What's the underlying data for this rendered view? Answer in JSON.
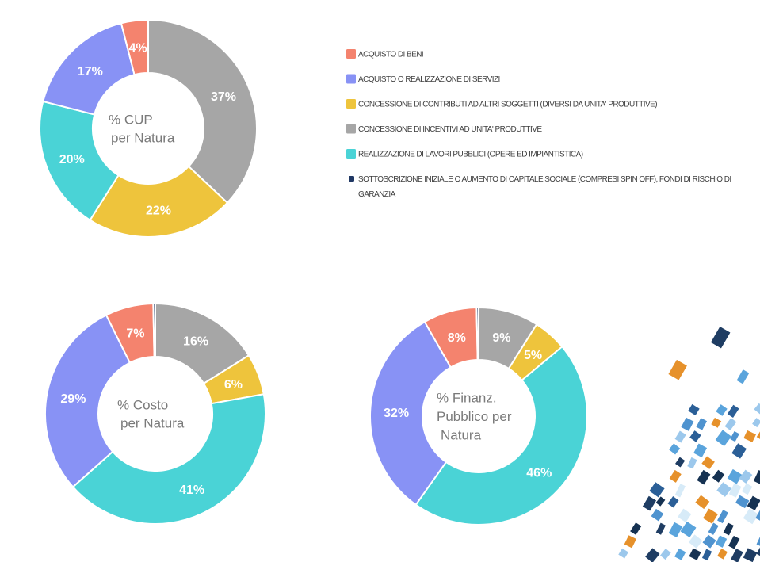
{
  "colors": {
    "acquisto_beni": "#f4836e",
    "servizi": "#8892f5",
    "contributi": "#eec43c",
    "incentivi": "#a6a6a6",
    "lavori": "#4ad3d6",
    "sottoscrizione": "#203864"
  },
  "legend": [
    {
      "key": "acquisto_beni",
      "lines": [
        "ACQUISTO DI BENI"
      ]
    },
    {
      "key": "servizi",
      "lines": [
        "ACQUISTO O REALIZZAZIONE DI SERVIZI"
      ]
    },
    {
      "key": "contributi",
      "lines": [
        "CONCESSIONE DI CONTRIBUTI AD ALTRI SOGGETTI (DIVERSI DA UNITA' PRODUTTIVE)"
      ]
    },
    {
      "key": "incentivi",
      "lines": [
        "CONCESSIONE DI INCENTIVI AD UNITA' PRODUTTIVE"
      ]
    },
    {
      "key": "lavori",
      "lines": [
        "REALIZZAZIONE DI LAVORI PUBBLICI (OPERE ED IMPIANTISTICA)"
      ]
    },
    {
      "key": "sottoscrizione",
      "lines": [
        "SOTTOSCRIZIONE INIZIALE O AUMENTO DI CAPITALE SOCIALE (COMPRESI SPIN OFF), FONDI DI RISCHIO DI",
        "GARANZIA"
      ]
    }
  ],
  "chart_data": [
    {
      "type": "pie",
      "title_lines": [
        "% CUP",
        "per Natura"
      ],
      "legend_position": "top-right",
      "slices": [
        {
          "key": "incentivi",
          "value": 37,
          "label": "37%"
        },
        {
          "key": "contributi",
          "value": 22,
          "label": "22%"
        },
        {
          "key": "lavori",
          "value": 20,
          "label": "20%"
        },
        {
          "key": "servizi",
          "value": 17,
          "label": "17%"
        },
        {
          "key": "acquisto_beni",
          "value": 4,
          "label": "4%"
        }
      ]
    },
    {
      "type": "pie",
      "title_lines": [
        "% Costo",
        "per Natura"
      ],
      "slices": [
        {
          "key": "incentivi",
          "value": 16,
          "label": "16%"
        },
        {
          "key": "contributi",
          "value": 6,
          "label": "6%"
        },
        {
          "key": "lavori",
          "value": 41,
          "label": "41%"
        },
        {
          "key": "servizi",
          "value": 29,
          "label": "29%"
        },
        {
          "key": "acquisto_beni",
          "value": 7,
          "label": "7%"
        },
        {
          "key": "sottoscrizione",
          "value": 0.3,
          "label": ""
        }
      ]
    },
    {
      "type": "pie",
      "title_lines": [
        "% Finanz.",
        "Pubblico per",
        "Natura"
      ],
      "slices": [
        {
          "key": "incentivi",
          "value": 9,
          "label": "9%"
        },
        {
          "key": "contributi",
          "value": 5,
          "label": "5%"
        },
        {
          "key": "lavori",
          "value": 46,
          "label": "46%"
        },
        {
          "key": "servizi",
          "value": 32,
          "label": "32%"
        },
        {
          "key": "acquisto_beni",
          "value": 8,
          "label": "8%"
        },
        {
          "key": "sottoscrizione",
          "value": 0.3,
          "label": ""
        }
      ]
    }
  ]
}
